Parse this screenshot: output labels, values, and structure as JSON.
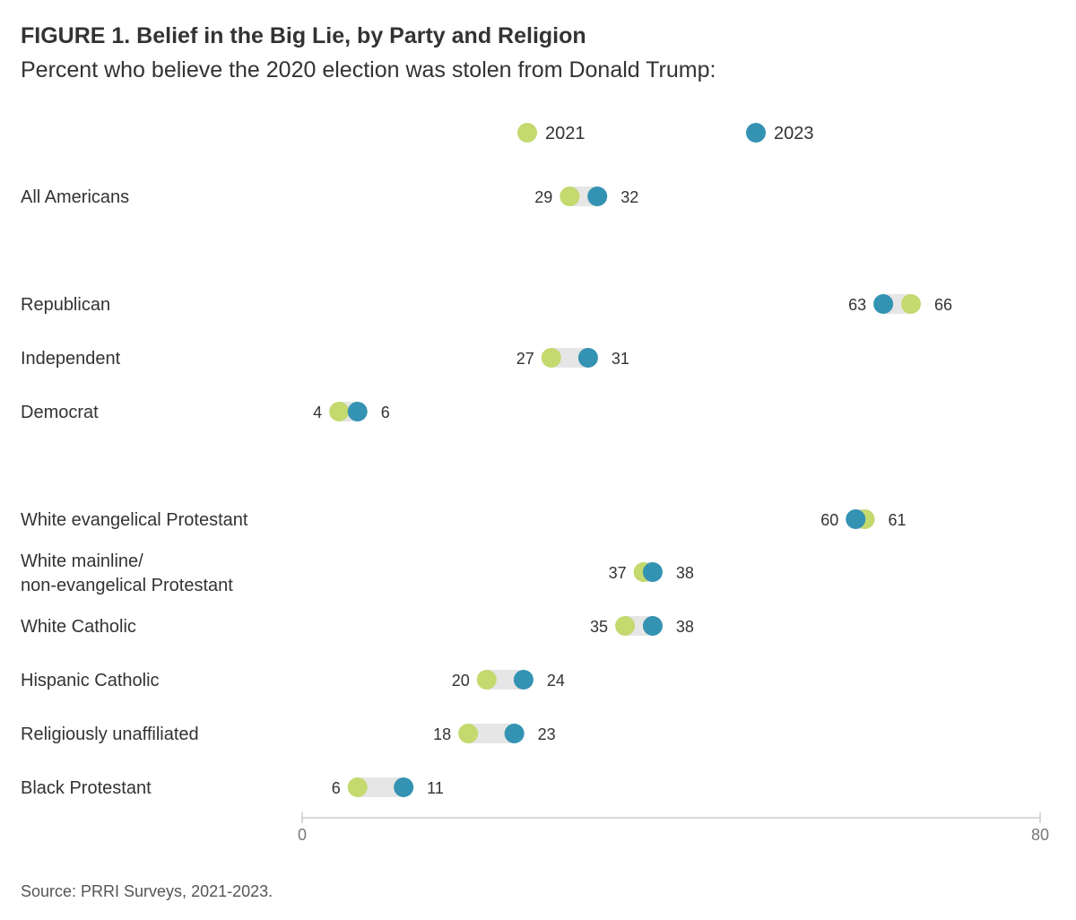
{
  "chart_data": {
    "type": "dumbbell",
    "title": "FIGURE 1. Belief in the Big Lie, by Party and Religion",
    "subtitle": "Percent who believe the 2020 election was stolen from Donald Trump:",
    "source": "Source: PRRI Surveys, 2021-2023.",
    "xlim": [
      0,
      80
    ],
    "x_ticks": [
      "0",
      "80"
    ],
    "series": [
      {
        "name": "2021",
        "color": "#c4d96e"
      },
      {
        "name": "2023",
        "color": "#3493b3"
      }
    ],
    "categories": [
      {
        "label": [
          "All Americans"
        ],
        "v2021": 29,
        "v2023": 32
      },
      {
        "label": [
          "Republican"
        ],
        "v2021": 66,
        "v2023": 63
      },
      {
        "label": [
          "Independent"
        ],
        "v2021": 27,
        "v2023": 31
      },
      {
        "label": [
          "Democrat"
        ],
        "v2021": 4,
        "v2023": 6
      },
      {
        "label": [
          "White evangelical Protestant"
        ],
        "v2021": 61,
        "v2023": 60
      },
      {
        "label": [
          "White mainline/",
          "non-evangelical Protestant"
        ],
        "v2021": 37,
        "v2023": 38
      },
      {
        "label": [
          "White Catholic"
        ],
        "v2021": 35,
        "v2023": 38
      },
      {
        "label": [
          "Hispanic Catholic"
        ],
        "v2021": 20,
        "v2023": 24
      },
      {
        "label": [
          "Religiously unaffiliated"
        ],
        "v2021": 18,
        "v2023": 23
      },
      {
        "label": [
          "Black Protestant"
        ],
        "v2021": 6,
        "v2023": 11
      }
    ]
  }
}
